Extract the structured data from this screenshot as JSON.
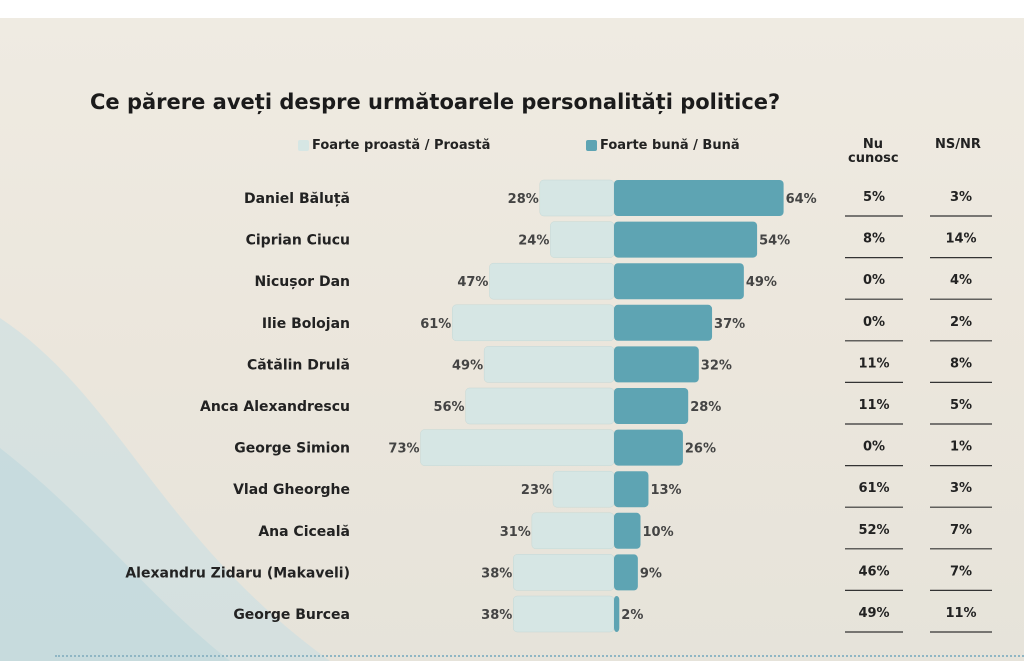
{
  "colors": {
    "negative": "#d6e6e4",
    "positive": "#5ea4b3",
    "background": "#ece8df"
  },
  "chart_data": {
    "type": "bar",
    "title": "Ce părere aveți despre următoarele personalități politice?",
    "legend": [
      "Foarte proastă / Proastă",
      "Foarte bună / Bună"
    ],
    "legend_placement": "top",
    "table_headers": [
      "Nu cunosc",
      "NS/NR"
    ],
    "rows": [
      {
        "name": "Daniel Băluță",
        "negative": 28,
        "positive": 64,
        "negative_label": "28%",
        "positive_label": "64%",
        "nu_cunosc": "5%",
        "ns_nr": "3%"
      },
      {
        "name": "Ciprian Ciucu",
        "negative": 24,
        "positive": 54,
        "negative_label": "24%",
        "positive_label": "54%",
        "nu_cunosc": "8%",
        "ns_nr": "14%"
      },
      {
        "name": "Nicușor Dan",
        "negative": 47,
        "positive": 49,
        "negative_label": "47%",
        "positive_label": "49%",
        "nu_cunosc": "0%",
        "ns_nr": "4%"
      },
      {
        "name": "Ilie Bolojan",
        "negative": 61,
        "positive": 37,
        "negative_label": "61%",
        "positive_label": "37%",
        "nu_cunosc": "0%",
        "ns_nr": "2%"
      },
      {
        "name": "Cătălin Drulă",
        "negative": 49,
        "positive": 32,
        "negative_label": "49%",
        "positive_label": "32%",
        "nu_cunosc": "11%",
        "ns_nr": "8%"
      },
      {
        "name": "Anca Alexandrescu",
        "negative": 56,
        "positive": 28,
        "negative_label": "56%",
        "positive_label": "28%",
        "nu_cunosc": "11%",
        "ns_nr": "5%"
      },
      {
        "name": "George Simion",
        "negative": 73,
        "positive": 26,
        "negative_label": "73%",
        "positive_label": "26%",
        "nu_cunosc": "0%",
        "ns_nr": "1%"
      },
      {
        "name": "Vlad Gheorghe",
        "negative": 23,
        "positive": 13,
        "negative_label": "23%",
        "positive_label": "13%",
        "nu_cunosc": "61%",
        "ns_nr": "3%"
      },
      {
        "name": "Ana Ciceală",
        "negative": 31,
        "positive": 10,
        "negative_label": "31%",
        "positive_label": "10%",
        "nu_cunosc": "52%",
        "ns_nr": "7%"
      },
      {
        "name": "Alexandru Zidaru (Makaveli)",
        "negative": 38,
        "positive": 9,
        "negative_label": "38%",
        "positive_label": "9%",
        "nu_cunosc": "46%",
        "ns_nr": "7%"
      },
      {
        "name": "George Burcea",
        "negative": 38,
        "positive": 2,
        "negative_label": "38%",
        "positive_label": "2%",
        "nu_cunosc": "49%",
        "ns_nr": "11%"
      }
    ]
  },
  "header": {
    "legend_negative": "Foarte proastă / Proastă",
    "legend_positive": "Foarte bună / Bună",
    "col_nu_line1": "Nu",
    "col_nu_line2": "cunosc",
    "col_ns": "NS/NR"
  }
}
